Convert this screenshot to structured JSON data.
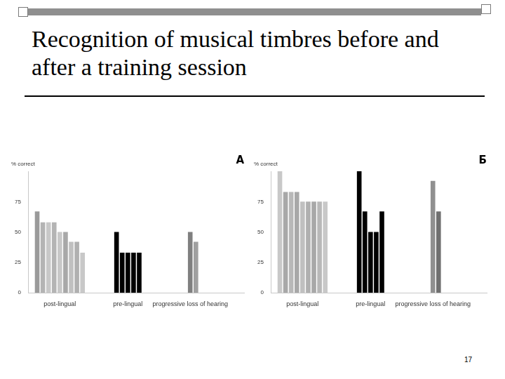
{
  "slide": {
    "title": "Recognition of musical timbres before and after a training session",
    "page_number": 17
  },
  "chart_data": [
    {
      "type": "bar",
      "title": "А",
      "ylabel": "% correct",
      "categories": [
        null,
        null,
        null,
        null,
        null,
        "post-lingual",
        null,
        null,
        null,
        null,
        null,
        null,
        null,
        null,
        null,
        null,
        null,
        "pre-lingual",
        null,
        null,
        null,
        null,
        null,
        null,
        null,
        null,
        null,
        null,
        "progressive loss of hearing",
        null,
        null,
        null,
        null,
        null,
        null,
        null,
        null,
        null
      ],
      "values": [
        null,
        67,
        58,
        58,
        58,
        50,
        50,
        42,
        42,
        33,
        null,
        null,
        null,
        null,
        null,
        50,
        33,
        33,
        33,
        33,
        null,
        null,
        null,
        null,
        null,
        null,
        null,
        null,
        50,
        42,
        null,
        null,
        null,
        null,
        null,
        null,
        null,
        null
      ],
      "colors": [
        null,
        "#9a9a9a",
        "#b4b4b4",
        "#c8c8c8",
        "#b4b4b4",
        "#c8c8c8",
        "#a8a8a8",
        "#c0c0c0",
        "#b0b0b0",
        "#c8c8c8",
        null,
        null,
        null,
        null,
        null,
        "#000000",
        "#000000",
        "#000000",
        "#000000",
        "#000000",
        null,
        null,
        null,
        null,
        null,
        null,
        null,
        null,
        "#808080",
        "#a0a0a0",
        null,
        null,
        null,
        null,
        null,
        null,
        null,
        null
      ],
      "ylim": [
        0,
        100
      ],
      "yticks": [
        0,
        25,
        50,
        75
      ],
      "grid": false
    },
    {
      "type": "bar",
      "title": "Б",
      "ylabel": "% correct",
      "categories": [
        null,
        null,
        null,
        null,
        null,
        "post-lingual",
        null,
        null,
        null,
        null,
        null,
        null,
        null,
        null,
        null,
        null,
        null,
        "pre-lingual",
        null,
        null,
        null,
        null,
        null,
        null,
        null,
        null,
        null,
        null,
        "progressive loss of hearing",
        null,
        null,
        null,
        null,
        null,
        null,
        null,
        null,
        null
      ],
      "values": [
        null,
        100,
        83,
        83,
        83,
        75,
        75,
        75,
        75,
        75,
        null,
        null,
        null,
        null,
        null,
        100,
        67,
        50,
        50,
        67,
        null,
        null,
        null,
        null,
        null,
        null,
        null,
        null,
        92,
        67,
        null,
        null,
        null,
        null,
        null,
        null,
        null,
        null
      ],
      "colors": [
        null,
        "#c8c8c8",
        "#a8a8a8",
        "#b8b8b8",
        "#a8a8a8",
        "#c0c0c0",
        "#b0b0b0",
        "#a8a8a8",
        "#b8b8b8",
        "#c8c8c8",
        null,
        null,
        null,
        null,
        null,
        "#000000",
        "#000000",
        "#000000",
        "#000000",
        "#000000",
        null,
        null,
        null,
        null,
        null,
        null,
        null,
        null,
        "#909090",
        "#707070",
        null,
        null,
        null,
        null,
        null,
        null,
        null,
        null
      ],
      "ylim": [
        0,
        100
      ],
      "yticks": [
        0,
        25,
        50,
        75
      ],
      "grid": false
    }
  ]
}
